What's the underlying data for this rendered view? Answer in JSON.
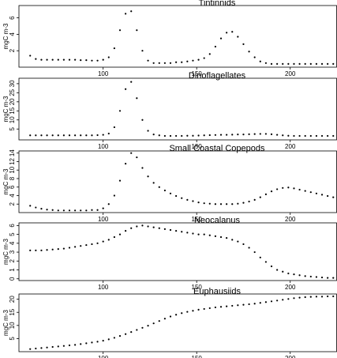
{
  "chart_data": [
    {
      "type": "scatter",
      "title": "Tintinnids",
      "y_label": "mgC m-3",
      "color": "#000000",
      "x": [
        61,
        64,
        67,
        70,
        73,
        76,
        79,
        82,
        85,
        88,
        91,
        94,
        97,
        100,
        103,
        106,
        109,
        112,
        115,
        118,
        121,
        124,
        127,
        130,
        133,
        136,
        139,
        142,
        145,
        148,
        151,
        154,
        157,
        160,
        163,
        166,
        169,
        172,
        175,
        178,
        181,
        184,
        187,
        190,
        193,
        196,
        199,
        202,
        205,
        208,
        211,
        214,
        217,
        220,
        223
      ],
      "values": [
        1.4,
        1.0,
        0.9,
        0.9,
        0.9,
        0.9,
        0.9,
        0.9,
        0.9,
        0.85,
        0.85,
        0.8,
        0.8,
        0.9,
        1.2,
        2.3,
        4.5,
        6.5,
        6.8,
        4.5,
        2.0,
        0.8,
        0.5,
        0.5,
        0.5,
        0.5,
        0.6,
        0.6,
        0.7,
        0.8,
        0.9,
        1.1,
        1.6,
        2.5,
        3.5,
        4.2,
        4.3,
        3.7,
        2.8,
        1.9,
        1.2,
        0.7,
        0.5,
        0.4,
        0.4,
        0.4,
        0.4,
        0.4,
        0.4,
        0.4,
        0.4,
        0.4,
        0.4,
        0.4,
        0.4
      ],
      "xlim": [
        55,
        225
      ],
      "xticks": [
        100,
        150,
        200
      ],
      "ylim": [
        0,
        7.5
      ],
      "yticks": [
        2,
        4,
        6
      ]
    },
    {
      "type": "scatter",
      "title": "Dinoflagellates",
      "y_label": "mgC m-3",
      "color": "#000000",
      "x": [
        61,
        64,
        67,
        70,
        73,
        76,
        79,
        82,
        85,
        88,
        91,
        94,
        97,
        100,
        103,
        106,
        109,
        112,
        115,
        118,
        121,
        124,
        127,
        130,
        133,
        136,
        139,
        142,
        145,
        148,
        151,
        154,
        157,
        160,
        163,
        166,
        169,
        172,
        175,
        178,
        181,
        184,
        187,
        190,
        193,
        196,
        199,
        202,
        205,
        208,
        211,
        214,
        217,
        220,
        223
      ],
      "values": [
        1.5,
        1.5,
        1.5,
        1.5,
        1.5,
        1.5,
        1.5,
        1.5,
        1.5,
        1.5,
        1.5,
        1.5,
        1.6,
        1.8,
        2.5,
        6,
        15,
        27,
        31,
        22,
        10,
        4,
        2,
        1.5,
        1.2,
        1.2,
        1.2,
        1.2,
        1.3,
        1.3,
        1.4,
        1.5,
        1.6,
        1.7,
        1.8,
        1.8,
        1.9,
        2.0,
        2.0,
        2.1,
        2.2,
        2.3,
        2.3,
        2.1,
        1.8,
        1.5,
        1.3,
        1.2,
        1.2,
        1.2,
        1.2,
        1.2,
        1.2,
        1.2,
        1.2
      ],
      "xlim": [
        55,
        225
      ],
      "xticks": [
        100,
        150,
        200
      ],
      "ylim": [
        -1,
        33
      ],
      "yticks": [
        5,
        10,
        15,
        20,
        25,
        30
      ]
    },
    {
      "type": "scatter",
      "title": "Small Coastal Copepods",
      "y_label": "mgC m-3",
      "color": "#000000",
      "x": [
        61,
        64,
        67,
        70,
        73,
        76,
        79,
        82,
        85,
        88,
        91,
        94,
        97,
        100,
        103,
        106,
        109,
        112,
        115,
        118,
        121,
        124,
        127,
        130,
        133,
        136,
        139,
        142,
        145,
        148,
        151,
        154,
        157,
        160,
        163,
        166,
        169,
        172,
        175,
        178,
        181,
        184,
        187,
        190,
        193,
        196,
        199,
        202,
        205,
        208,
        211,
        214,
        217,
        220,
        223
      ],
      "values": [
        1.6,
        1.2,
        0.9,
        0.7,
        0.6,
        0.5,
        0.5,
        0.5,
        0.5,
        0.5,
        0.5,
        0.6,
        0.6,
        1.0,
        2.0,
        4.0,
        7.5,
        11.5,
        14,
        13,
        10.5,
        8.5,
        7,
        6,
        5.2,
        4.5,
        3.9,
        3.4,
        3.0,
        2.7,
        2.4,
        2.2,
        2.1,
        2.0,
        2.0,
        2.0,
        2.0,
        2.1,
        2.3,
        2.6,
        3.0,
        3.6,
        4.3,
        5.0,
        5.5,
        5.8,
        5.9,
        5.7,
        5.4,
        5.1,
        4.8,
        4.5,
        4.2,
        3.9,
        3.6
      ],
      "xlim": [
        55,
        225
      ],
      "xticks": [
        100,
        150,
        200
      ],
      "ylim": [
        0,
        14.5
      ],
      "yticks": [
        2,
        4,
        6,
        8,
        10,
        12,
        14
      ]
    },
    {
      "type": "scatter",
      "title": "Neocalanus",
      "y_label": "mgC m-3",
      "color": "#000000",
      "x": [
        61,
        64,
        67,
        70,
        73,
        76,
        79,
        82,
        85,
        88,
        91,
        94,
        97,
        100,
        103,
        106,
        109,
        112,
        115,
        118,
        121,
        124,
        127,
        130,
        133,
        136,
        139,
        142,
        145,
        148,
        151,
        154,
        157,
        160,
        163,
        166,
        169,
        172,
        175,
        178,
        181,
        184,
        187,
        190,
        193,
        196,
        199,
        202,
        205,
        208,
        211,
        214,
        217,
        220,
        223
      ],
      "values": [
        3.2,
        3.2,
        3.2,
        3.25,
        3.3,
        3.35,
        3.4,
        3.5,
        3.6,
        3.7,
        3.8,
        3.9,
        4.0,
        4.2,
        4.4,
        4.7,
        5.0,
        5.4,
        5.7,
        5.9,
        6.0,
        5.9,
        5.8,
        5.7,
        5.6,
        5.5,
        5.4,
        5.3,
        5.2,
        5.1,
        5.0,
        5.0,
        4.9,
        4.8,
        4.7,
        4.6,
        4.4,
        4.2,
        3.9,
        3.5,
        3.0,
        2.4,
        1.9,
        1.4,
        1.0,
        0.8,
        0.6,
        0.5,
        0.4,
        0.3,
        0.25,
        0.2,
        0.15,
        0.1,
        0.1
      ],
      "xlim": [
        55,
        225
      ],
      "xticks": [
        100,
        150,
        200
      ],
      "ylim": [
        -0.2,
        6.3
      ],
      "yticks": [
        0,
        1,
        2,
        3,
        4,
        5,
        6
      ]
    },
    {
      "type": "scatter",
      "title": "Euphausiids",
      "y_label": "mgC m-3",
      "color": "#000000",
      "x": [
        61,
        64,
        67,
        70,
        73,
        76,
        79,
        82,
        85,
        88,
        91,
        94,
        97,
        100,
        103,
        106,
        109,
        112,
        115,
        118,
        121,
        124,
        127,
        130,
        133,
        136,
        139,
        142,
        145,
        148,
        151,
        154,
        157,
        160,
        163,
        166,
        169,
        172,
        175,
        178,
        181,
        184,
        187,
        190,
        193,
        196,
        199,
        202,
        205,
        208,
        211,
        214,
        217,
        220,
        223
      ],
      "values": [
        1.0,
        1.2,
        1.4,
        1.6,
        1.8,
        2.0,
        2.2,
        2.4,
        2.6,
        2.9,
        3.2,
        3.5,
        3.8,
        4.2,
        4.7,
        5.3,
        6.0,
        6.7,
        7.5,
        8.3,
        9.1,
        9.9,
        10.8,
        11.7,
        12.6,
        13.4,
        14.1,
        14.7,
        15.2,
        15.6,
        16.0,
        16.3,
        16.6,
        16.9,
        17.1,
        17.3,
        17.5,
        17.7,
        17.9,
        18.1,
        18.3,
        18.6,
        18.9,
        19.2,
        19.5,
        19.8,
        20.1,
        20.4,
        20.6,
        20.8,
        20.9,
        21.0,
        21.0,
        21.1,
        21.1
      ],
      "xlim": [
        55,
        225
      ],
      "xticks": [
        100,
        150,
        200
      ],
      "ylim": [
        0,
        22
      ],
      "yticks": [
        5,
        10,
        15,
        20
      ]
    }
  ]
}
